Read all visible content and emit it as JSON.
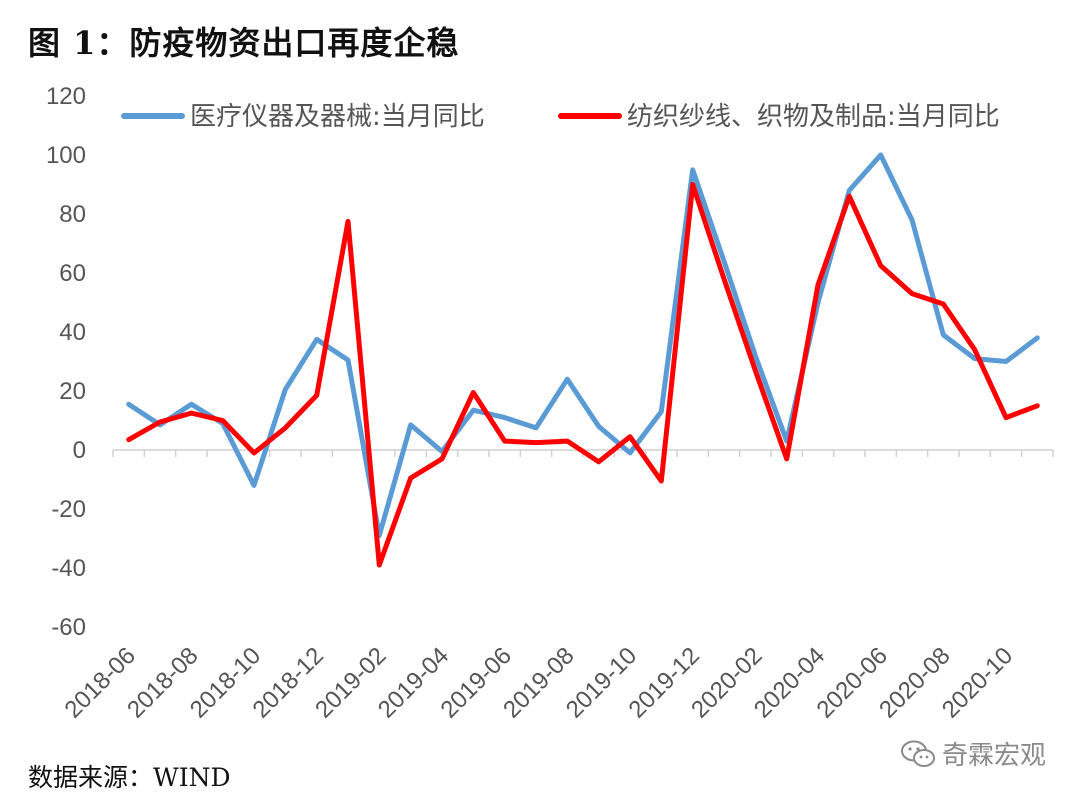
{
  "header": {
    "title": "图 1：防疫物资出口再度企稳"
  },
  "footer": {
    "source": "数据来源：WIND",
    "watermark": "奇霖宏观"
  },
  "chart_data": {
    "type": "line",
    "ylim": [
      -60,
      120
    ],
    "yticks": [
      120,
      100,
      80,
      60,
      40,
      20,
      0,
      -20,
      -40,
      -60
    ],
    "grid": false,
    "legend_placement": "top",
    "x": [
      "2018-06",
      "2018-07",
      "2018-08",
      "2018-09",
      "2018-10",
      "2018-11",
      "2018-12",
      "2019-01",
      "2019-02",
      "2019-03",
      "2019-04",
      "2019-05",
      "2019-06",
      "2019-07",
      "2019-08",
      "2019-09",
      "2019-10",
      "2019-11",
      "2019-12",
      "2020-01",
      "2020-02",
      "2020-03",
      "2020-04",
      "2020-05",
      "2020-06",
      "2020-07",
      "2020-08",
      "2020-09",
      "2020-10",
      "2020-11"
    ],
    "xtick_labels": [
      "2018-06",
      "2018-08",
      "2018-10",
      "2018-12",
      "2019-02",
      "2019-04",
      "2019-06",
      "2019-08",
      "2019-10",
      "2019-12",
      "2020-02",
      "2020-04",
      "2020-06",
      "2020-08",
      "2020-10"
    ],
    "series": [
      {
        "name": "医疗仪器及器械:当月同比",
        "color": "#5b9bd5",
        "values": [
          15.5,
          8.5,
          15.5,
          9,
          -12,
          20.5,
          37.5,
          30.5,
          -29,
          8.5,
          -0.5,
          13.5,
          11,
          7.5,
          24,
          8,
          -1,
          13,
          95,
          64,
          32,
          3,
          50,
          88,
          100,
          78,
          39,
          31,
          30,
          38
        ]
      },
      {
        "name": "纺织纱线、织物及制品:当月同比",
        "color": "#ff0000",
        "values": [
          3.5,
          9.5,
          12.5,
          10,
          -1,
          7.5,
          18.5,
          77.5,
          -39,
          -9.5,
          -3,
          19.5,
          3,
          2.5,
          3,
          -4,
          4.5,
          -10.5,
          90,
          58,
          27,
          -3,
          56,
          86,
          62.5,
          53,
          49.5,
          34,
          11,
          15
        ]
      }
    ]
  }
}
